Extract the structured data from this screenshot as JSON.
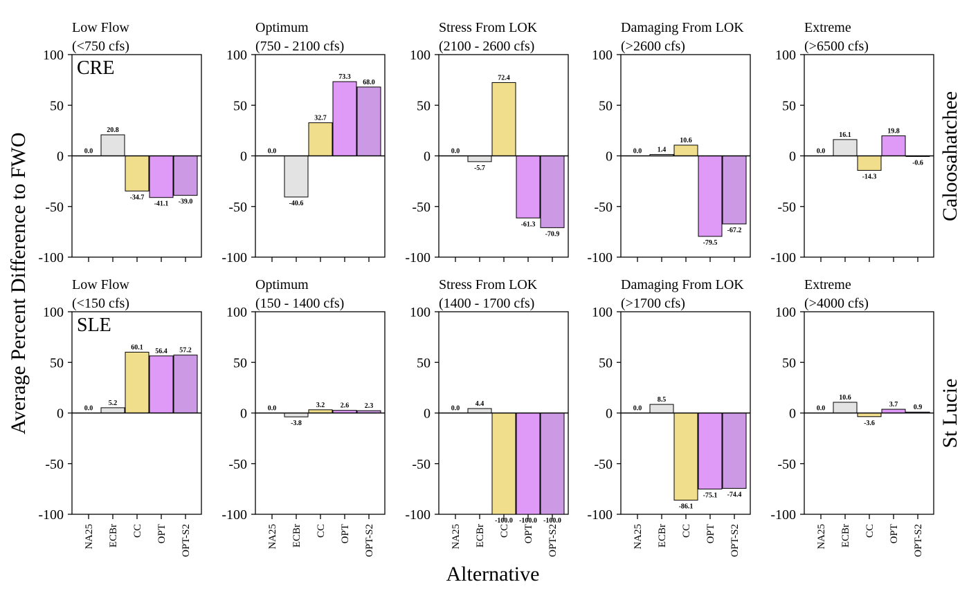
{
  "y_axis_label": "Average Percent Difference to FWO",
  "x_axis_label": "Alternative",
  "chart_data": [
    {
      "type": "bar",
      "row": "Caloosahatchee",
      "estuary": "CRE",
      "title": [
        "Low Flow",
        "(<750 cfs)"
      ],
      "categories": [
        "NA25",
        "ECBr",
        "CC",
        "OPT",
        "OPT-S2"
      ],
      "values": [
        0.0,
        20.8,
        -34.7,
        -41.1,
        -39.0
      ],
      "labels": [
        "0.0",
        "20.8",
        "-34.7",
        "-41.1",
        "-39.0"
      ],
      "ylim": [
        -100,
        100
      ],
      "yticks": [
        -100,
        -50,
        0,
        50,
        100
      ]
    },
    {
      "type": "bar",
      "row": "Caloosahatchee",
      "title": [
        "Optimum",
        "(750 - 2100 cfs)"
      ],
      "categories": [
        "NA25",
        "ECBr",
        "CC",
        "OPT",
        "OPT-S2"
      ],
      "values": [
        0.0,
        -40.6,
        32.7,
        73.3,
        68.0
      ],
      "labels": [
        "0.0",
        "-40.6",
        "32.7",
        "73.3",
        "68.0"
      ],
      "ylim": [
        -100,
        100
      ],
      "yticks": [
        -100,
        -50,
        0,
        50,
        100
      ]
    },
    {
      "type": "bar",
      "row": "Caloosahatchee",
      "title": [
        "Stress From LOK",
        "(2100 - 2600 cfs)"
      ],
      "categories": [
        "NA25",
        "ECBr",
        "CC",
        "OPT",
        "OPT-S2"
      ],
      "values": [
        0.0,
        -5.7,
        72.4,
        -61.3,
        -70.9
      ],
      "labels": [
        "0.0",
        "-5.7",
        "72.4",
        "-61.3",
        "-70.9"
      ],
      "ylim": [
        -100,
        100
      ],
      "yticks": [
        -100,
        -50,
        0,
        50,
        100
      ]
    },
    {
      "type": "bar",
      "row": "Caloosahatchee",
      "title": [
        "Damaging From LOK",
        "(>2600 cfs)"
      ],
      "categories": [
        "NA25",
        "ECBr",
        "CC",
        "OPT",
        "OPT-S2"
      ],
      "values": [
        0.0,
        1.4,
        10.6,
        -79.5,
        -67.2
      ],
      "labels": [
        "0.0",
        "1.4",
        "10.6",
        "-79.5",
        "-67.2"
      ],
      "ylim": [
        -100,
        100
      ],
      "yticks": [
        -100,
        -50,
        0,
        50,
        100
      ]
    },
    {
      "type": "bar",
      "row": "Caloosahatchee",
      "title": [
        "Extreme",
        "(>6500 cfs)"
      ],
      "categories": [
        "NA25",
        "ECBr",
        "CC",
        "OPT",
        "OPT-S2"
      ],
      "values": [
        0.0,
        16.1,
        -14.3,
        19.8,
        -0.6
      ],
      "labels": [
        "0.0",
        "16.1",
        "-14.3",
        "19.8",
        "-0.6"
      ],
      "ylim": [
        -100,
        100
      ],
      "yticks": [
        -100,
        -50,
        0,
        50,
        100
      ]
    },
    {
      "type": "bar",
      "row": "St Lucie",
      "estuary": "SLE",
      "title": [
        "Low Flow",
        "(<150 cfs)"
      ],
      "categories": [
        "NA25",
        "ECBr",
        "CC",
        "OPT",
        "OPT-S2"
      ],
      "values": [
        0.0,
        5.2,
        60.1,
        56.4,
        57.2
      ],
      "labels": [
        "0.0",
        "5.2",
        "60.1",
        "56.4",
        "57.2"
      ],
      "ylim": [
        -100,
        100
      ],
      "yticks": [
        -100,
        -50,
        0,
        50,
        100
      ]
    },
    {
      "type": "bar",
      "row": "St Lucie",
      "title": [
        "Optimum",
        "(150 - 1400 cfs)"
      ],
      "categories": [
        "NA25",
        "ECBr",
        "CC",
        "OPT",
        "OPT-S2"
      ],
      "values": [
        0.0,
        -3.8,
        3.2,
        2.6,
        2.3
      ],
      "labels": [
        "0.0",
        "-3.8",
        "3.2",
        "2.6",
        "2.3"
      ],
      "ylim": [
        -100,
        100
      ],
      "yticks": [
        -100,
        -50,
        0,
        50,
        100
      ]
    },
    {
      "type": "bar",
      "row": "St Lucie",
      "title": [
        "Stress From LOK",
        "(1400 - 1700 cfs)"
      ],
      "categories": [
        "NA25",
        "ECBr",
        "CC",
        "OPT",
        "OPT-S2"
      ],
      "values": [
        0.0,
        4.4,
        -100.0,
        -100.0,
        -100.0
      ],
      "labels": [
        "0.0",
        "4.4",
        "-100.0",
        "-100.0",
        "-100.0"
      ],
      "ylim": [
        -100,
        100
      ],
      "yticks": [
        -100,
        -50,
        0,
        50,
        100
      ]
    },
    {
      "type": "bar",
      "row": "St Lucie",
      "title": [
        "Damaging From LOK",
        "(>1700 cfs)"
      ],
      "categories": [
        "NA25",
        "ECBr",
        "CC",
        "OPT",
        "OPT-S2"
      ],
      "values": [
        0.0,
        8.5,
        -86.1,
        -75.1,
        -74.4
      ],
      "labels": [
        "0.0",
        "8.5",
        "-86.1",
        "-75.1",
        "-74.4"
      ],
      "ylim": [
        -100,
        100
      ],
      "yticks": [
        -100,
        -50,
        0,
        50,
        100
      ]
    },
    {
      "type": "bar",
      "row": "St Lucie",
      "title": [
        "Extreme",
        "(>4000 cfs)"
      ],
      "categories": [
        "NA25",
        "ECBr",
        "CC",
        "OPT",
        "OPT-S2"
      ],
      "values": [
        0.0,
        10.6,
        -3.6,
        3.7,
        0.9
      ],
      "labels": [
        "0.0",
        "10.6",
        "-3.6",
        "3.7",
        "0.9"
      ],
      "ylim": [
        -100,
        100
      ],
      "yticks": [
        -100,
        -50,
        0,
        50,
        100
      ]
    }
  ],
  "row_labels": [
    "Caloosahatchee",
    "St Lucie"
  ],
  "bar_colors": {
    "NA25": "#ffffff",
    "ECBr": "#e3e3e3",
    "CC": "#f0de8c",
    "OPT": "#df99f7",
    "OPT-S2": "#cc99e4"
  }
}
